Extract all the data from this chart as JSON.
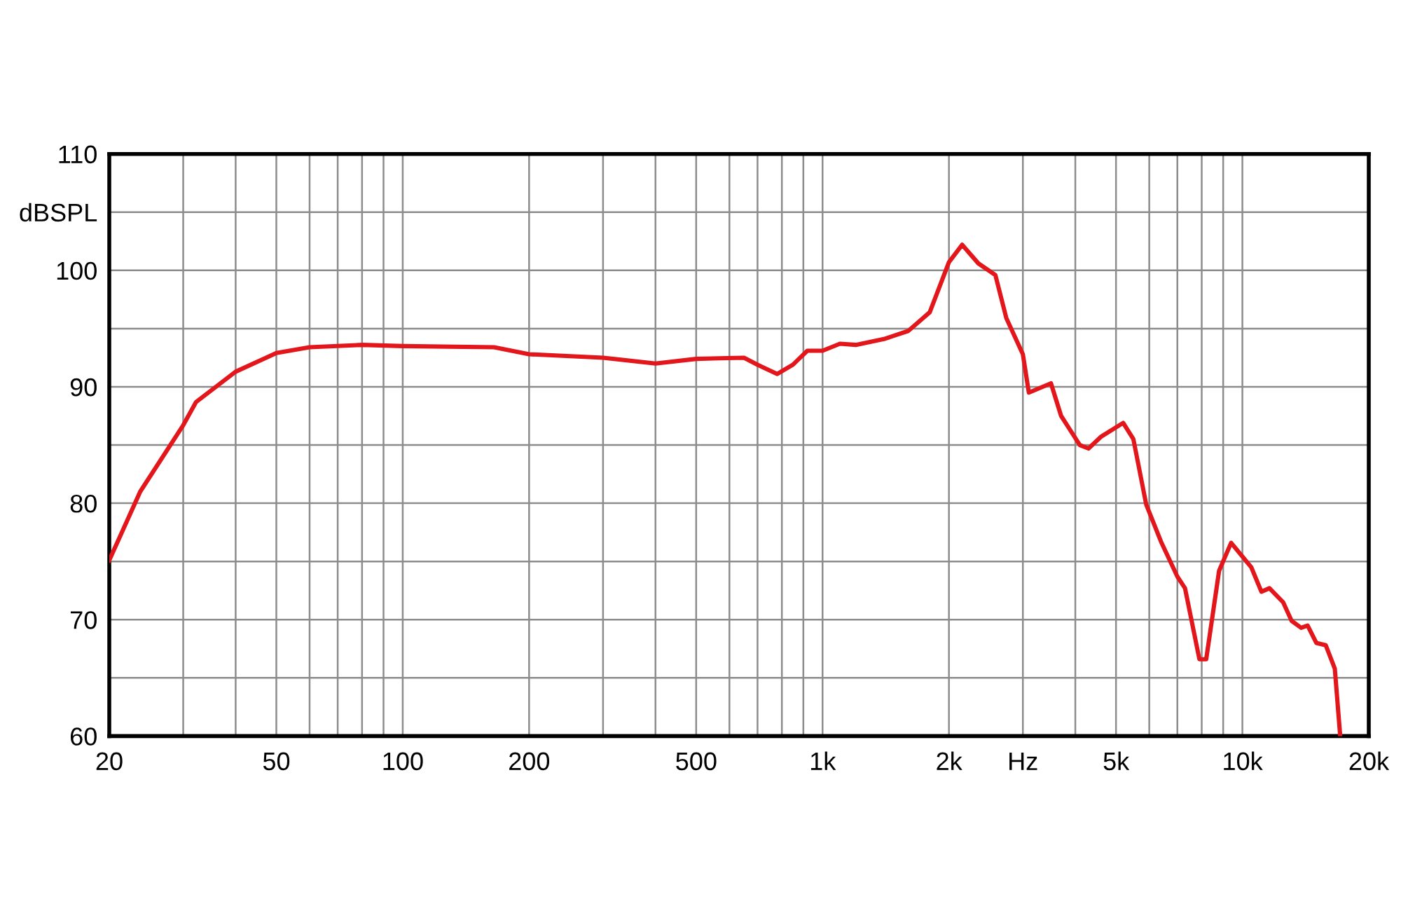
{
  "chart_data": {
    "type": "line",
    "log": "x",
    "grid": true,
    "marker": "none",
    "line_style": "solid",
    "xlim": [
      20,
      20000
    ],
    "ylim": [
      60,
      110
    ],
    "xticks": [
      20,
      {
        "value": 30,
        "label": null
      },
      {
        "value": 40,
        "label": null
      },
      50,
      {
        "value": 60,
        "label": null
      },
      {
        "value": 70,
        "label": null
      },
      {
        "value": 80,
        "label": null
      },
      {
        "value": 90,
        "label": null
      },
      100,
      200,
      {
        "value": 300,
        "label": null
      },
      {
        "value": 400,
        "label": null
      },
      500,
      {
        "value": 600,
        "label": null
      },
      {
        "value": 700,
        "label": null
      },
      {
        "value": 800,
        "label": null
      },
      {
        "value": 900,
        "label": null
      },
      {
        "value": 1000,
        "label": "1k"
      },
      {
        "value": 2000,
        "label": "2k"
      },
      {
        "value": 3000,
        "label": "Hz"
      },
      {
        "value": 4000,
        "label": null
      },
      {
        "value": 5000,
        "label": "5k"
      },
      {
        "value": 6000,
        "label": null
      },
      {
        "value": 7000,
        "label": null
      },
      {
        "value": 8000,
        "label": null
      },
      {
        "value": 9000,
        "label": null
      },
      {
        "value": 10000,
        "label": "10k"
      },
      {
        "value": 20000,
        "label": "20k"
      }
    ],
    "yticks": [
      60,
      {
        "value": 65,
        "label": null
      },
      70,
      {
        "value": 75,
        "label": null
      },
      80,
      {
        "value": 85,
        "label": null
      },
      90,
      {
        "value": 95,
        "label": null
      },
      100,
      {
        "value": 105,
        "label": "dBSPL"
      },
      110
    ],
    "series": [
      {
        "color": "#e3161c",
        "x": [
          20,
          23.7,
          30,
          32.2,
          40,
          50,
          60,
          80,
          100,
          165,
          200,
          300,
          400,
          500,
          650,
          700,
          780,
          850,
          920,
          1000,
          1100,
          1200,
          1400,
          1600,
          1800,
          2000,
          2150,
          2350,
          2580,
          2740,
          3000,
          3100,
          3500,
          3700,
          4100,
          4300,
          4600,
          5200,
          5500,
          5900,
          6400,
          7000,
          7300,
          7900,
          8200,
          8800,
          9400,
          10500,
          11100,
          11600,
          12500,
          13100,
          13800,
          14300,
          15000,
          15800,
          16600,
          17100
        ],
        "values": [
          75.1,
          81,
          86.7,
          88.7,
          91.3,
          92.9,
          93.4,
          93.6,
          93.5,
          93.4,
          92.8,
          92.5,
          92.0,
          92.4,
          92.5,
          91.9,
          91.1,
          91.9,
          93.1,
          93.1,
          93.7,
          93.6,
          94.1,
          94.8,
          96.4,
          100.7,
          102.2,
          100.6,
          99.6,
          95.9,
          92.8,
          89.5,
          90.3,
          87.5,
          85.0,
          84.7,
          85.7,
          86.9,
          85.5,
          79.9,
          76.7,
          73.7,
          72.7,
          66.6,
          66.6,
          74.2,
          76.6,
          74.5,
          72.4,
          72.7,
          71.5,
          69.9,
          69.3,
          69.5,
          68.0,
          67.8,
          65.8,
          60
        ]
      }
    ]
  }
}
